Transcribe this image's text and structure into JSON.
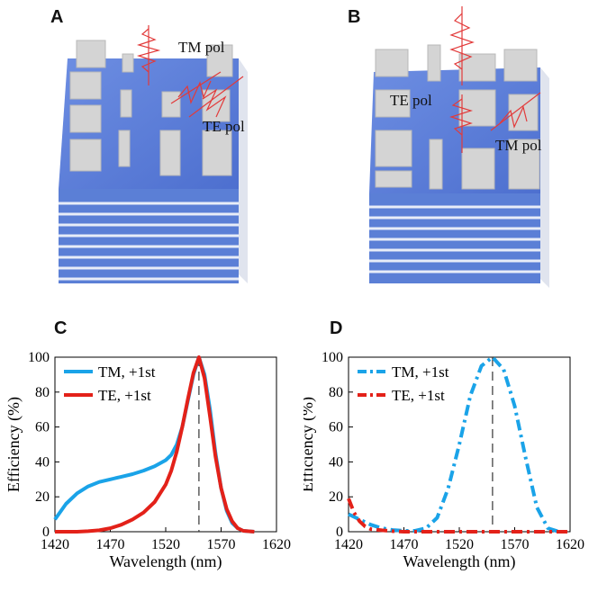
{
  "panels": {
    "a": {
      "letter": "A",
      "labels": {
        "tm": "TM pol",
        "te": "TE pol"
      }
    },
    "b": {
      "letter": "B",
      "labels": {
        "te": "TE pol",
        "tm": "TM pol"
      }
    },
    "c": {
      "letter": "C"
    },
    "d": {
      "letter": "D"
    }
  },
  "colors": {
    "substrate_blue": "#5b7fd6",
    "pillar_gray": "#cfcfcf",
    "wave_red": "#e23a3a",
    "tm_series": "#1aa3e8",
    "te_series": "#e32119"
  },
  "chart_data": [
    {
      "panel": "C",
      "type": "line",
      "xlabel": "Wavelength (nm)",
      "ylabel": "Efficiency (%)",
      "xlim": [
        1420,
        1620
      ],
      "ylim": [
        0,
        100
      ],
      "xticks": [
        1420,
        1470,
        1520,
        1570,
        1620
      ],
      "yticks": [
        0,
        20,
        40,
        60,
        80,
        100
      ],
      "grid": false,
      "legend": "top-left",
      "vline_x": 1550,
      "series": [
        {
          "name": "TM, +1st",
          "style": "solid",
          "color": "#1aa3e8",
          "x": [
            1420,
            1430,
            1440,
            1450,
            1460,
            1470,
            1480,
            1490,
            1500,
            1510,
            1520,
            1525,
            1530,
            1535,
            1540,
            1545,
            1550,
            1555,
            1560,
            1565,
            1570,
            1575,
            1580,
            1585,
            1590,
            1600
          ],
          "y": [
            7,
            16,
            22,
            26,
            28.5,
            30,
            31.5,
            33,
            35,
            37.5,
            41,
            44,
            50,
            60,
            75,
            90,
            100,
            90,
            70,
            45,
            25,
            12,
            5,
            2,
            0.5,
            0
          ]
        },
        {
          "name": "TE, +1st",
          "style": "solid",
          "color": "#e32119",
          "x": [
            1420,
            1440,
            1450,
            1460,
            1470,
            1480,
            1490,
            1500,
            1510,
            1520,
            1525,
            1530,
            1535,
            1540,
            1545,
            1550,
            1555,
            1560,
            1565,
            1570,
            1575,
            1580,
            1585,
            1590,
            1600
          ],
          "y": [
            0,
            0,
            0.3,
            0.8,
            2,
            4,
            7,
            11,
            17,
            27,
            35,
            46,
            60,
            76,
            91,
            100,
            88,
            66,
            43,
            25,
            13,
            6,
            2,
            0.5,
            0
          ]
        }
      ]
    },
    {
      "panel": "D",
      "type": "line",
      "xlabel": "Wavelength (nm)",
      "ylabel": "Efficiency (%)",
      "xlim": [
        1420,
        1620
      ],
      "ylim": [
        0,
        100
      ],
      "xticks": [
        1420,
        1470,
        1520,
        1570,
        1620
      ],
      "yticks": [
        0,
        20,
        40,
        60,
        80,
        100
      ],
      "grid": false,
      "legend": "top-left",
      "vline_x": 1550,
      "series": [
        {
          "name": "TM, +1st",
          "style": "dash-dot",
          "color": "#1aa3e8",
          "x": [
            1420,
            1430,
            1440,
            1450,
            1460,
            1470,
            1480,
            1490,
            1500,
            1510,
            1520,
            1530,
            1540,
            1550,
            1560,
            1570,
            1580,
            1590,
            1600,
            1610
          ],
          "y": [
            10,
            7,
            4,
            2,
            1,
            0.5,
            0.5,
            2,
            8,
            25,
            50,
            78,
            95,
            100,
            93,
            72,
            42,
            14,
            2,
            0
          ]
        },
        {
          "name": "TE, +1st",
          "style": "dash-dot",
          "color": "#e32119",
          "x": [
            1420,
            1425,
            1430,
            1435,
            1440,
            1450,
            1460,
            1470,
            1500,
            1550,
            1620
          ],
          "y": [
            19,
            11,
            6,
            3,
            1.5,
            0.8,
            0.3,
            0,
            0,
            0,
            0
          ]
        }
      ]
    }
  ]
}
